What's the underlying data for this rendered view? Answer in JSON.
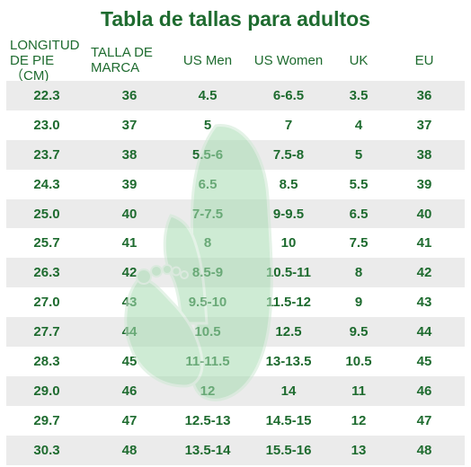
{
  "title": "Tabla de tallas para adultos",
  "headers": {
    "foot_length_1": "LONGITUD",
    "foot_length_2": "DE PIE（CM)",
    "brand_size_1": "TALLA DE",
    "brand_size_2": "MARCA",
    "us_men": "US Men",
    "us_women": "US Women",
    "uk": "UK",
    "eu": "EU"
  },
  "rows": [
    {
      "cm": "22.3",
      "brand": "36",
      "us_men": "4.5",
      "us_women": "6-6.5",
      "uk": "3.5",
      "eu": "36"
    },
    {
      "cm": "23.0",
      "brand": "37",
      "us_men": "5",
      "us_women": "7",
      "uk": "4",
      "eu": "37"
    },
    {
      "cm": "23.7",
      "brand": "38",
      "us_men": "5.5-6",
      "us_women": "7.5-8",
      "uk": "5",
      "eu": "38"
    },
    {
      "cm": "24.3",
      "brand": "39",
      "us_men": "6.5",
      "us_women": "8.5",
      "uk": "5.5",
      "eu": "39"
    },
    {
      "cm": "25.0",
      "brand": "40",
      "us_men": "7-7.5",
      "us_women": "9-9.5",
      "uk": "6.5",
      "eu": "40"
    },
    {
      "cm": "25.7",
      "brand": "41",
      "us_men": "8",
      "us_women": "10",
      "uk": "7.5",
      "eu": "41"
    },
    {
      "cm": "26.3",
      "brand": "42",
      "us_men": "8.5-9",
      "us_women": "10.5-11",
      "uk": "8",
      "eu": "42"
    },
    {
      "cm": "27.0",
      "brand": "43",
      "us_men": "9.5-10",
      "us_women": "11.5-12",
      "uk": "9",
      "eu": "43"
    },
    {
      "cm": "27.7",
      "brand": "44",
      "us_men": "10.5",
      "us_women": "12.5",
      "uk": "9.5",
      "eu": "44"
    },
    {
      "cm": "28.3",
      "brand": "45",
      "us_men": "11-11.5",
      "us_women": "13-13.5",
      "uk": "10.5",
      "eu": "45"
    },
    {
      "cm": "29.0",
      "brand": "46",
      "us_men": "12",
      "us_women": "14",
      "uk": "11",
      "eu": "46"
    },
    {
      "cm": "29.7",
      "brand": "47",
      "us_men": "12.5-13",
      "us_women": "14.5-15",
      "uk": "12",
      "eu": "47"
    },
    {
      "cm": "30.3",
      "brand": "48",
      "us_men": "13.5-14",
      "us_women": "15.5-16",
      "uk": "13",
      "eu": "48"
    }
  ],
  "colors": {
    "text": "#1e6b2f",
    "stripe": "#e8e8e8",
    "watermark": "#8ccf9a"
  },
  "watermark_icon": "foot-and-shoe-icon"
}
